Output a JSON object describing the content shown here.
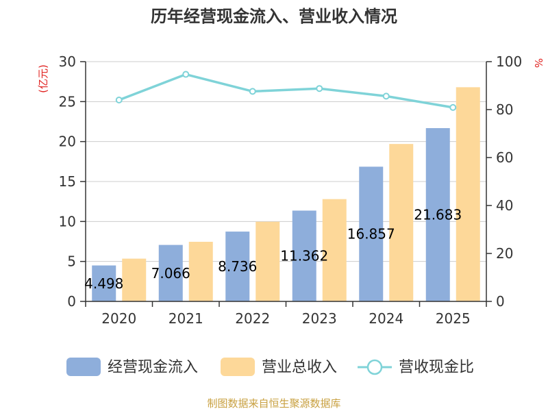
{
  "chart_data": {
    "type": "bar",
    "title": "历年经营现金流入、营业收入情况",
    "categories": [
      "2020",
      "2021",
      "2022",
      "2023",
      "2024",
      "2025"
    ],
    "y_left": {
      "unit": "(亿元)",
      "ylim": [
        0,
        30
      ],
      "ticks": [
        "0",
        "5",
        "10",
        "15",
        "20",
        "25",
        "30"
      ]
    },
    "y_right": {
      "unit": "%",
      "ylim": [
        0,
        100
      ],
      "ticks": [
        "0",
        "20",
        "40",
        "60",
        "80",
        "100"
      ]
    },
    "series": [
      {
        "name": "经营现金流入",
        "type": "bar",
        "axis": "left",
        "color": "#8eaedb",
        "values": [
          4.498,
          7.066,
          8.736,
          11.362,
          16.857,
          21.683
        ],
        "labels": [
          "4.498",
          "7.066",
          "8.736",
          "11.362",
          "16.857",
          "21.683"
        ]
      },
      {
        "name": "营业总收入",
        "type": "bar",
        "axis": "left",
        "color": "#fdd899",
        "values": [
          5.35,
          7.46,
          9.97,
          12.8,
          19.7,
          26.8
        ]
      },
      {
        "name": "营收现金比",
        "type": "line",
        "axis": "right",
        "color": "#7fd3d8",
        "values": [
          84.0,
          94.7,
          87.6,
          88.8,
          85.6,
          80.9
        ]
      }
    ],
    "grid": true,
    "legend": "bottom"
  },
  "source": "制图数据来自恒生聚源数据库"
}
